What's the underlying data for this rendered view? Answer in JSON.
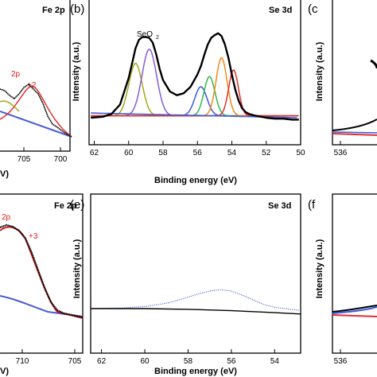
{
  "colors": {
    "raw_data": "#000000",
    "envelope": "#000000",
    "background": "#4a5bd6",
    "peak_olive": "#a3a81c",
    "peak_purple": "#8a5bd6",
    "peak_blue": "#3a56e0",
    "peak_green": "#2fb84a",
    "peak_orange": "#f08a1a",
    "peak_red": "#e03030",
    "annotation_red": "#d62020",
    "dotted_blue": "#3a56e0",
    "fit_red": "#d62020"
  },
  "chart_data": [
    {
      "panel": "a",
      "type": "line",
      "corner_label": "Fe 2p",
      "x_ticks": [
        "705",
        "700"
      ],
      "x_axis_label": "V)",
      "annotations": [
        "2p",
        "+2"
      ],
      "series": []
    },
    {
      "panel": "b",
      "type": "line",
      "corner_label": "Se 3d",
      "panel_letter": "(b)",
      "y_axis_label": "Intensity (a.u.)",
      "x_axis_label": "Binding energy (eV)",
      "x_ticks": [
        "62",
        "60",
        "58",
        "56",
        "54",
        "52",
        "50"
      ],
      "xlim": [
        62.3,
        50.0
      ],
      "annotation": "SeO",
      "annotation_sub": "2",
      "series": [
        {
          "kind": "raw",
          "x": [
            62.2,
            61.5,
            61,
            60.5,
            60,
            59.8,
            59.6,
            59.4,
            59.2,
            59,
            58.8,
            58.6,
            58.4,
            58.2,
            58,
            57.6,
            57.2,
            56.8,
            56.4,
            56,
            55.8,
            55.6,
            55.4,
            55.2,
            55,
            54.8,
            54.6,
            54.4,
            54.2,
            54,
            53.8,
            53.6,
            53.4,
            53.2,
            53,
            52.6,
            52,
            51.5,
            51,
            50.5,
            50.1
          ],
          "y": [
            0.0,
            0.01,
            0.04,
            0.14,
            0.42,
            0.58,
            0.74,
            0.83,
            0.86,
            0.86,
            0.85,
            0.8,
            0.68,
            0.52,
            0.4,
            0.28,
            0.24,
            0.26,
            0.33,
            0.46,
            0.55,
            0.67,
            0.78,
            0.85,
            0.88,
            0.9,
            0.87,
            0.78,
            0.64,
            0.46,
            0.3,
            0.18,
            0.1,
            0.06,
            0.04,
            0.02,
            0.0,
            -0.01,
            -0.01,
            -0.02,
            -0.02
          ]
        },
        {
          "kind": "peak",
          "color": "#a3a81c",
          "center": 59.6,
          "height": 0.56,
          "width": 0.55
        },
        {
          "kind": "peak",
          "color": "#8a5bd6",
          "center": 58.8,
          "height": 0.71,
          "width": 0.6
        },
        {
          "kind": "peak",
          "color": "#3a56e0",
          "center": 55.8,
          "height": 0.31,
          "width": 0.5
        },
        {
          "kind": "peak",
          "color": "#2fb84a",
          "center": 55.3,
          "height": 0.42,
          "width": 0.45
        },
        {
          "kind": "peak",
          "color": "#f08a1a",
          "center": 54.6,
          "height": 0.62,
          "width": 0.45
        },
        {
          "kind": "peak",
          "color": "#e03030",
          "center": 53.9,
          "height": 0.49,
          "width": 0.4
        }
      ]
    },
    {
      "panel": "c",
      "type": "line",
      "panel_letter": "(c",
      "x_ticks": [
        "536"
      ],
      "series": []
    },
    {
      "panel": "d",
      "type": "line",
      "corner_label": "Fe 2p",
      "x_ticks": [
        "710",
        "705"
      ],
      "x_axis_label": "V)",
      "annotations": [
        "2p",
        "+3"
      ],
      "series": []
    },
    {
      "panel": "e",
      "type": "line",
      "corner_label": "Se 3d",
      "panel_letter": "(e)",
      "y_axis_label": "Intensity (a.u.)",
      "x_axis_label": "Binding energy (eV)",
      "x_ticks": [
        "62",
        "60",
        "58",
        "56",
        "54"
      ],
      "xlim": [
        62.5,
        52.8
      ],
      "series": [
        {
          "kind": "dotted",
          "color": "#3a56e0",
          "x": [
            62.5,
            61,
            60,
            59,
            58.5,
            58,
            57.5,
            57,
            56.5,
            56,
            55.5,
            55,
            54.5,
            54,
            53.5,
            53,
            52.8
          ],
          "y": [
            0.0,
            0.005,
            0.015,
            0.04,
            0.06,
            0.085,
            0.11,
            0.13,
            0.14,
            0.13,
            0.1,
            0.065,
            0.03,
            0.01,
            0.0,
            -0.01,
            -0.015
          ]
        },
        {
          "kind": "line",
          "color": "#000000",
          "x": [
            62.5,
            60,
            58,
            56,
            54,
            52.8
          ],
          "y": [
            0.0,
            0.0,
            -0.005,
            -0.015,
            -0.03,
            -0.04
          ]
        }
      ]
    },
    {
      "panel": "f",
      "type": "line",
      "panel_letter": "(f",
      "x_ticks": [
        "536"
      ],
      "series": []
    }
  ]
}
